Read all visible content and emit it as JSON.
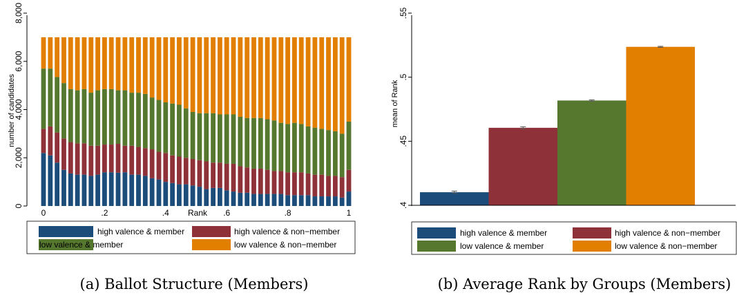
{
  "colors": {
    "high_member": "#1c4c7a",
    "high_nonmember": "#8f3139",
    "low_member": "#56782e",
    "low_nonmember": "#e27e00"
  },
  "chart_data": [
    {
      "type": "bar",
      "stacked": true,
      "caption": "(a) Ballot Structure (Members)",
      "xlabel": "Rank",
      "ylabel": "number of candidates",
      "xlim": [
        0,
        1
      ],
      "ylim": [
        0,
        8000
      ],
      "xticks": [
        "0",
        ".2",
        ".4",
        ".6",
        ".8",
        "1"
      ],
      "yticks": [
        "0",
        "2,000",
        "4,000",
        "6,000",
        "8,000"
      ],
      "total": 7000,
      "legend": [
        "high valence & member",
        "high valence & non−member",
        "low valence & member",
        "low valence & non−member"
      ],
      "legend_position": "bottom",
      "x": [
        0,
        0.0222,
        0.0444,
        0.0667,
        0.0889,
        0.1111,
        0.1333,
        0.1556,
        0.1778,
        0.2,
        0.2222,
        0.2444,
        0.2667,
        0.2889,
        0.3111,
        0.3333,
        0.3556,
        0.3778,
        0.4,
        0.4222,
        0.4444,
        0.4667,
        0.4889,
        0.5111,
        0.5333,
        0.5556,
        0.5778,
        0.6,
        0.6222,
        0.6444,
        0.6667,
        0.6889,
        0.7111,
        0.7333,
        0.7556,
        0.7778,
        0.8,
        0.8222,
        0.8444,
        0.8667,
        0.8889,
        0.9111,
        0.9333,
        0.9556,
        0.9778,
        1
      ],
      "series": [
        {
          "name": "high valence & member",
          "values": [
            2200,
            2100,
            1800,
            1500,
            1350,
            1300,
            1300,
            1250,
            1300,
            1400,
            1400,
            1380,
            1400,
            1300,
            1300,
            1250,
            1150,
            1100,
            1000,
            950,
            900,
            900,
            850,
            800,
            700,
            750,
            750,
            650,
            600,
            550,
            550,
            500,
            500,
            500,
            500,
            500,
            450,
            450,
            450,
            450,
            400,
            400,
            400,
            400,
            350,
            600
          ]
        },
        {
          "name": "high valence & non−member",
          "values": [
            1000,
            1200,
            1250,
            1300,
            1300,
            1300,
            1300,
            1250,
            1200,
            1150,
            1150,
            1200,
            1100,
            1200,
            1150,
            1150,
            1200,
            1150,
            1200,
            1150,
            1150,
            1100,
            1100,
            1100,
            1150,
            1050,
            1050,
            1100,
            1150,
            1100,
            1050,
            1050,
            1050,
            1000,
            950,
            950,
            950,
            950,
            950,
            900,
            900,
            900,
            850,
            850,
            850,
            900
          ]
        },
        {
          "name": "low valence & member",
          "values": [
            2500,
            2400,
            2300,
            2300,
            2200,
            2200,
            2250,
            2200,
            2300,
            2300,
            2300,
            2220,
            2300,
            2200,
            2250,
            2250,
            2150,
            2150,
            2100,
            2150,
            2150,
            2050,
            1950,
            1950,
            2000,
            2050,
            2000,
            2050,
            2050,
            2050,
            2050,
            2100,
            2100,
            2100,
            2100,
            2000,
            2000,
            2050,
            2000,
            1950,
            1950,
            1900,
            1900,
            1850,
            1800,
            2000
          ]
        },
        {
          "name": "low valence & non−member",
          "values": [
            1300,
            1300,
            1650,
            1900,
            2150,
            2200,
            2150,
            2300,
            2200,
            2150,
            2150,
            2200,
            2200,
            2300,
            2300,
            2350,
            2500,
            2600,
            2700,
            2750,
            2800,
            2950,
            3100,
            3150,
            3150,
            3150,
            3200,
            3200,
            3200,
            3300,
            3350,
            3350,
            3350,
            3400,
            3450,
            3550,
            3600,
            3550,
            3600,
            3700,
            3750,
            3800,
            3850,
            3900,
            4000,
            3500
          ]
        }
      ]
    },
    {
      "type": "bar",
      "caption": "(b) Average Rank by Groups (Members)",
      "ylabel": "mean of Rank",
      "ylim": [
        0.4,
        0.55
      ],
      "yticks": [
        ".4",
        ".45",
        ".5",
        ".55"
      ],
      "categories": [
        "high valence & member",
        "high valence & non−member",
        "low valence & member",
        "low valence & non−member"
      ],
      "values": [
        0.4102,
        0.4605,
        0.4818,
        0.5237
      ],
      "error_low": [
        0.4093,
        0.4597,
        0.4813,
        0.5233
      ],
      "error_high": [
        0.4111,
        0.4613,
        0.4823,
        0.5241
      ],
      "legend": [
        "high valence & member",
        "high valence & non−member",
        "low valence & member",
        "low valence & non−member"
      ],
      "legend_position": "bottom"
    }
  ]
}
